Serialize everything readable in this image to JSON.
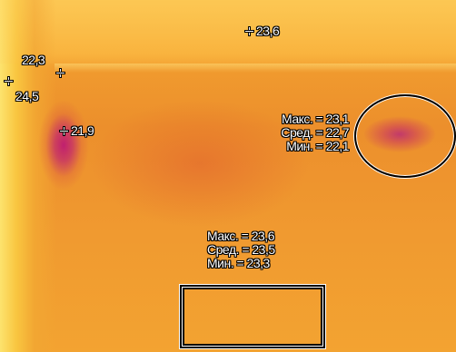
{
  "spots": {
    "top_center": "23,6",
    "left_upper": "22,3",
    "left_mid": "24,5",
    "corner": "21,9"
  },
  "ellipse_stats": {
    "max": "Макс. = 23,1",
    "avg": "Сред. = 22,7",
    "min": "Мин. = 22,1"
  },
  "rect_stats": {
    "max": "Макс. = 23,6",
    "avg": "Сред. = 23,5",
    "min": "Мин. = 23,3"
  }
}
